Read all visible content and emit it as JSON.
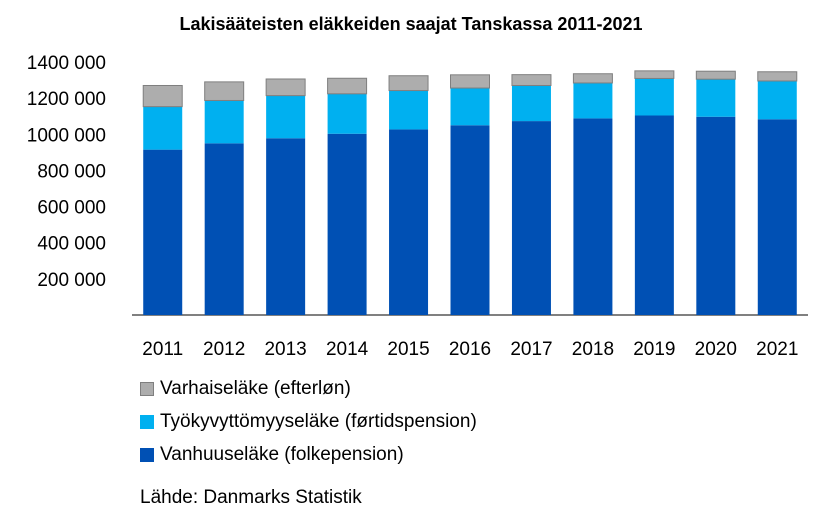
{
  "chart_data": {
    "type": "bar",
    "stacked": true,
    "title": "Lakisääteisten eläkkeiden saajat Tanskassa 2011-2021",
    "categories": [
      "2011",
      "2012",
      "2013",
      "2014",
      "2015",
      "2016",
      "2017",
      "2018",
      "2019",
      "2020",
      "2021"
    ],
    "series": [
      {
        "name": "Vanhuuseläke (folkepension)",
        "color": "#0050B4",
        "values": [
          915000,
          950000,
          978000,
          1003000,
          1027000,
          1050000,
          1073000,
          1088000,
          1104000,
          1097000,
          1083000
        ]
      },
      {
        "name": "Työkyvyttömyyseläke (førtidspension)",
        "color": "#00B0F0",
        "values": [
          238000,
          237000,
          236000,
          221000,
          215000,
          206000,
          197000,
          196000,
          205000,
          208000,
          212000
        ]
      },
      {
        "name": "Varhaiseläke (efterløn)",
        "color": "#ADADAD",
        "values": [
          117000,
          103000,
          92000,
          86000,
          82000,
          73000,
          60000,
          51000,
          42000,
          44000,
          51000
        ]
      }
    ],
    "legend_order": [
      2,
      1,
      0
    ],
    "ylim": [
      0,
      1400000
    ],
    "yticks": [
      200000,
      400000,
      600000,
      800000,
      1000000,
      1200000,
      1400000
    ],
    "ytick_labels": [
      "200 000",
      "400 000",
      "600 000",
      "800 000",
      "1000 000",
      "1200 000",
      "1400 000"
    ],
    "grid": false,
    "legend_position": "bottom-left",
    "source": "Lähde: Danmarks Statistik"
  }
}
